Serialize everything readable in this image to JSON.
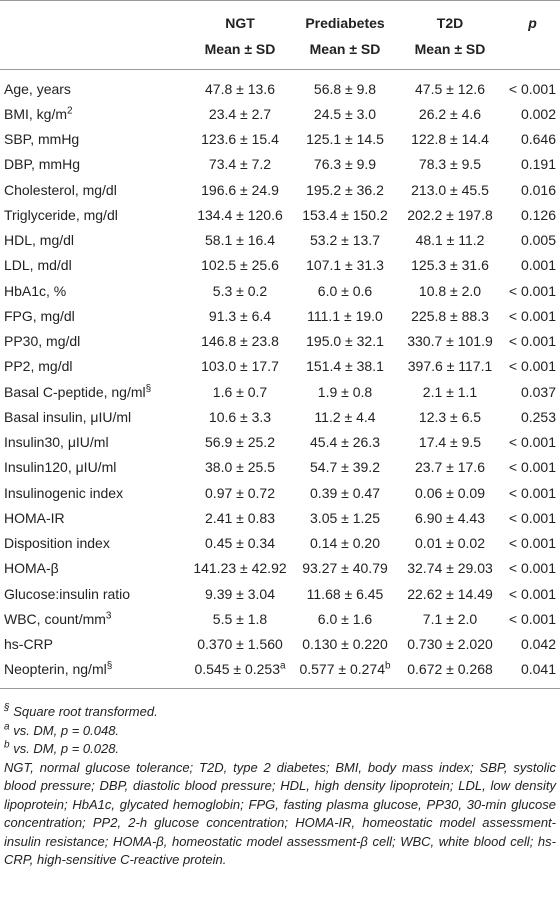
{
  "table": {
    "columns": [
      {
        "name": "NGT",
        "sub": "Mean ± SD"
      },
      {
        "name": "Prediabetes",
        "sub": "Mean ± SD"
      },
      {
        "name": "T2D",
        "sub": "Mean ± SD"
      },
      {
        "name": "p"
      }
    ],
    "rows": [
      [
        "Age, years",
        "47.8 ± 13.6",
        "56.8 ± 9.8",
        "47.5 ± 12.6",
        "< 0.001"
      ],
      [
        {
          "text": "BMI, kg/m",
          "sup": "2"
        },
        "23.4 ± 2.7",
        "24.5 ± 3.0",
        "26.2 ± 4.6",
        "0.002"
      ],
      [
        "SBP, mmHg",
        "123.6 ± 15.4",
        "125.1 ± 14.5",
        "122.8 ± 14.4",
        "0.646"
      ],
      [
        "DBP, mmHg",
        "73.4 ± 7.2",
        "76.3 ± 9.9",
        "78.3 ± 9.5",
        "0.191"
      ],
      [
        "Cholesterol, mg/dl",
        "196.6 ± 24.9",
        "195.2 ± 36.2",
        "213.0 ± 45.5",
        "0.016"
      ],
      [
        "Triglyceride, mg/dl",
        "134.4 ± 120.6",
        "153.4 ± 150.2",
        "202.2 ± 197.8",
        "0.126"
      ],
      [
        "HDL, mg/dl",
        "58.1 ± 16.4",
        "53.2 ± 13.7",
        "48.1 ± 11.2",
        "0.005"
      ],
      [
        "LDL, md/dl",
        "102.5 ± 25.6",
        "107.1 ± 31.3",
        "125.3 ± 31.6",
        "0.001"
      ],
      [
        "HbA1c, %",
        "5.3 ± 0.2",
        "6.0 ± 0.6",
        "10.8 ± 2.0",
        "< 0.001"
      ],
      [
        "FPG, mg/dl",
        "91.3 ± 6.4",
        "111.1 ± 19.0",
        "225.8 ± 88.3",
        "< 0.001"
      ],
      [
        "PP30, mg/dl",
        "146.8 ± 23.8",
        "195.0 ± 32.1",
        "330.7 ± 101.9",
        "< 0.001"
      ],
      [
        "PP2, mg/dl",
        "103.0 ± 17.7",
        "151.4 ± 38.1",
        "397.6 ± 117.1",
        "< 0.001"
      ],
      [
        {
          "text": "Basal C-peptide, ng/ml",
          "sup": "§"
        },
        "1.6 ± 0.7",
        "1.9 ± 0.8",
        "2.1 ± 1.1",
        "0.037"
      ],
      [
        "Basal insulin, μIU/ml",
        "10.6 ± 3.3",
        "11.2 ± 4.4",
        "12.3 ± 6.5",
        "0.253"
      ],
      [
        "Insulin30, μIU/ml",
        "56.9 ± 25.2",
        "45.4 ± 26.3",
        "17.4 ± 9.5",
        "< 0.001"
      ],
      [
        "Insulin120, μIU/ml",
        "38.0 ± 25.5",
        "54.7 ± 39.2",
        "23.7 ± 17.6",
        "< 0.001"
      ],
      [
        "Insulinogenic index",
        "0.97 ± 0.72",
        "0.39 ± 0.47",
        "0.06 ± 0.09",
        "< 0.001"
      ],
      [
        "HOMA-IR",
        "2.41 ± 0.83",
        "3.05 ± 1.25",
        "6.90 ± 4.43",
        "< 0.001"
      ],
      [
        "Disposition index",
        "0.45 ± 0.34",
        "0.14 ± 0.20",
        "0.01 ± 0.02",
        "< 0.001"
      ],
      [
        "HOMA-β",
        "141.23 ± 42.92",
        "93.27 ± 40.79",
        "32.74 ± 29.03",
        "< 0.001"
      ],
      [
        "Glucose:insulin ratio",
        "9.39 ± 3.04",
        "11.68 ± 6.45",
        "22.62 ± 14.49",
        "< 0.001"
      ],
      [
        {
          "text": "WBC, count/mm",
          "sup": "3"
        },
        "5.5 ± 1.8",
        "6.0 ± 1.6",
        "7.1 ± 2.0",
        "< 0.001"
      ],
      [
        "hs-CRP",
        "0.370 ± 1.560",
        "0.130 ± 0.220",
        "0.730 ± 2.020",
        "0.042"
      ],
      [
        {
          "text": "Neopterin, ng/ml",
          "sup": "§"
        },
        {
          "text": "0.545 ± 0.253",
          "sup": "a"
        },
        {
          "text": "0.577 ± 0.274",
          "sup": "b"
        },
        "0.672 ± 0.268",
        "0.041"
      ]
    ],
    "footnotes": [
      {
        "mark": "§",
        "text": "Square root transformed."
      },
      {
        "mark": "a",
        "text": "vs. DM, p = 0.048."
      },
      {
        "mark": "b",
        "text": "vs. DM, p = 0.028."
      }
    ],
    "abbreviations": "NGT, normal glucose tolerance; T2D, type 2 diabetes; BMI, body mass index; SBP, systolic blood pressure; DBP, diastolic blood pressure; HDL, high density lipoprotein; LDL, low density lipoprotein; HbA1c, glycated hemoglobin; FPG, fasting plasma glucose, PP30, 30-min glucose concentration; PP2, 2-h glucose concentration; HOMA-IR, homeostatic model assessment-insulin resistance; HOMA-β, homeostatic model assessment-β cell; WBC, white blood cell; hs-CRP, high-sensitive C-reactive protein."
  }
}
